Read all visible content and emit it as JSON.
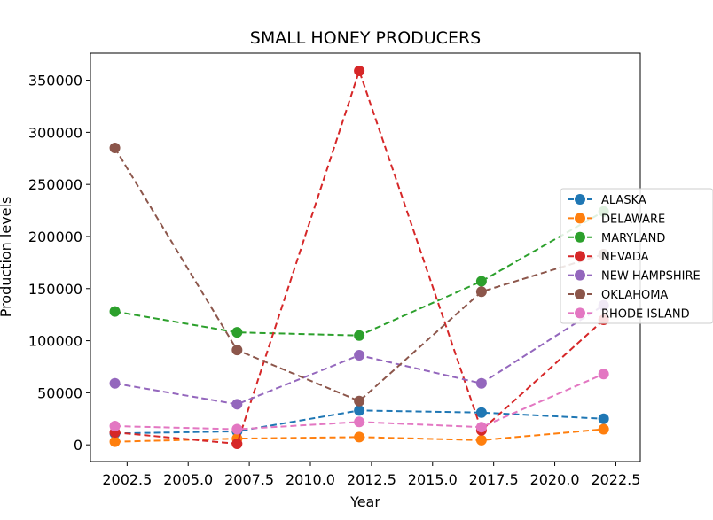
{
  "chart_data": {
    "type": "line",
    "title": "SMALL HONEY PRODUCERS",
    "xlabel": "Year",
    "ylabel": "Production levels",
    "xlim": [
      2001.0,
      2023.5
    ],
    "ylim": [
      -16000,
      376000
    ],
    "xticks": [
      2002.5,
      2005.0,
      2007.5,
      2010.0,
      2012.5,
      2015.0,
      2017.5,
      2020.0,
      2022.5
    ],
    "xtick_labels": [
      "2002.5",
      "2005.0",
      "2007.5",
      "2010.0",
      "2012.5",
      "2015.0",
      "2017.5",
      "2020.0",
      "2022.5"
    ],
    "yticks": [
      0,
      50000,
      100000,
      150000,
      200000,
      250000,
      300000,
      350000
    ],
    "ytick_labels": [
      "0",
      "50000",
      "100000",
      "150000",
      "200000",
      "250000",
      "300000",
      "350000"
    ],
    "grid": false,
    "legend_position": "right",
    "x": [
      2002,
      2007,
      2012,
      2017,
      2022
    ],
    "series": [
      {
        "name": "ALASKA",
        "color": "#1f77b4",
        "values": [
          11000,
          13000,
          33000,
          31000,
          25000
        ]
      },
      {
        "name": "DELAWARE",
        "color": "#ff7f0e",
        "values": [
          3000,
          6000,
          7500,
          4500,
          15000
        ]
      },
      {
        "name": "MARYLAND",
        "color": "#2ca02c",
        "values": [
          128000,
          108000,
          105000,
          157000,
          224000
        ]
      },
      {
        "name": "NEVADA",
        "color": "#d62728",
        "values": [
          12000,
          1000,
          359000,
          14000,
          120000
        ]
      },
      {
        "name": "NEW HAMPSHIRE",
        "color": "#9467bd",
        "values": [
          59000,
          39000,
          86000,
          59000,
          134000
        ]
      },
      {
        "name": "OKLAHOMA",
        "color": "#8c564b",
        "values": [
          285000,
          91000,
          42000,
          147000,
          183000
        ]
      },
      {
        "name": "RHODE ISLAND",
        "color": "#e377c2",
        "values": [
          18000,
          15000,
          22000,
          17000,
          68000
        ]
      }
    ]
  }
}
